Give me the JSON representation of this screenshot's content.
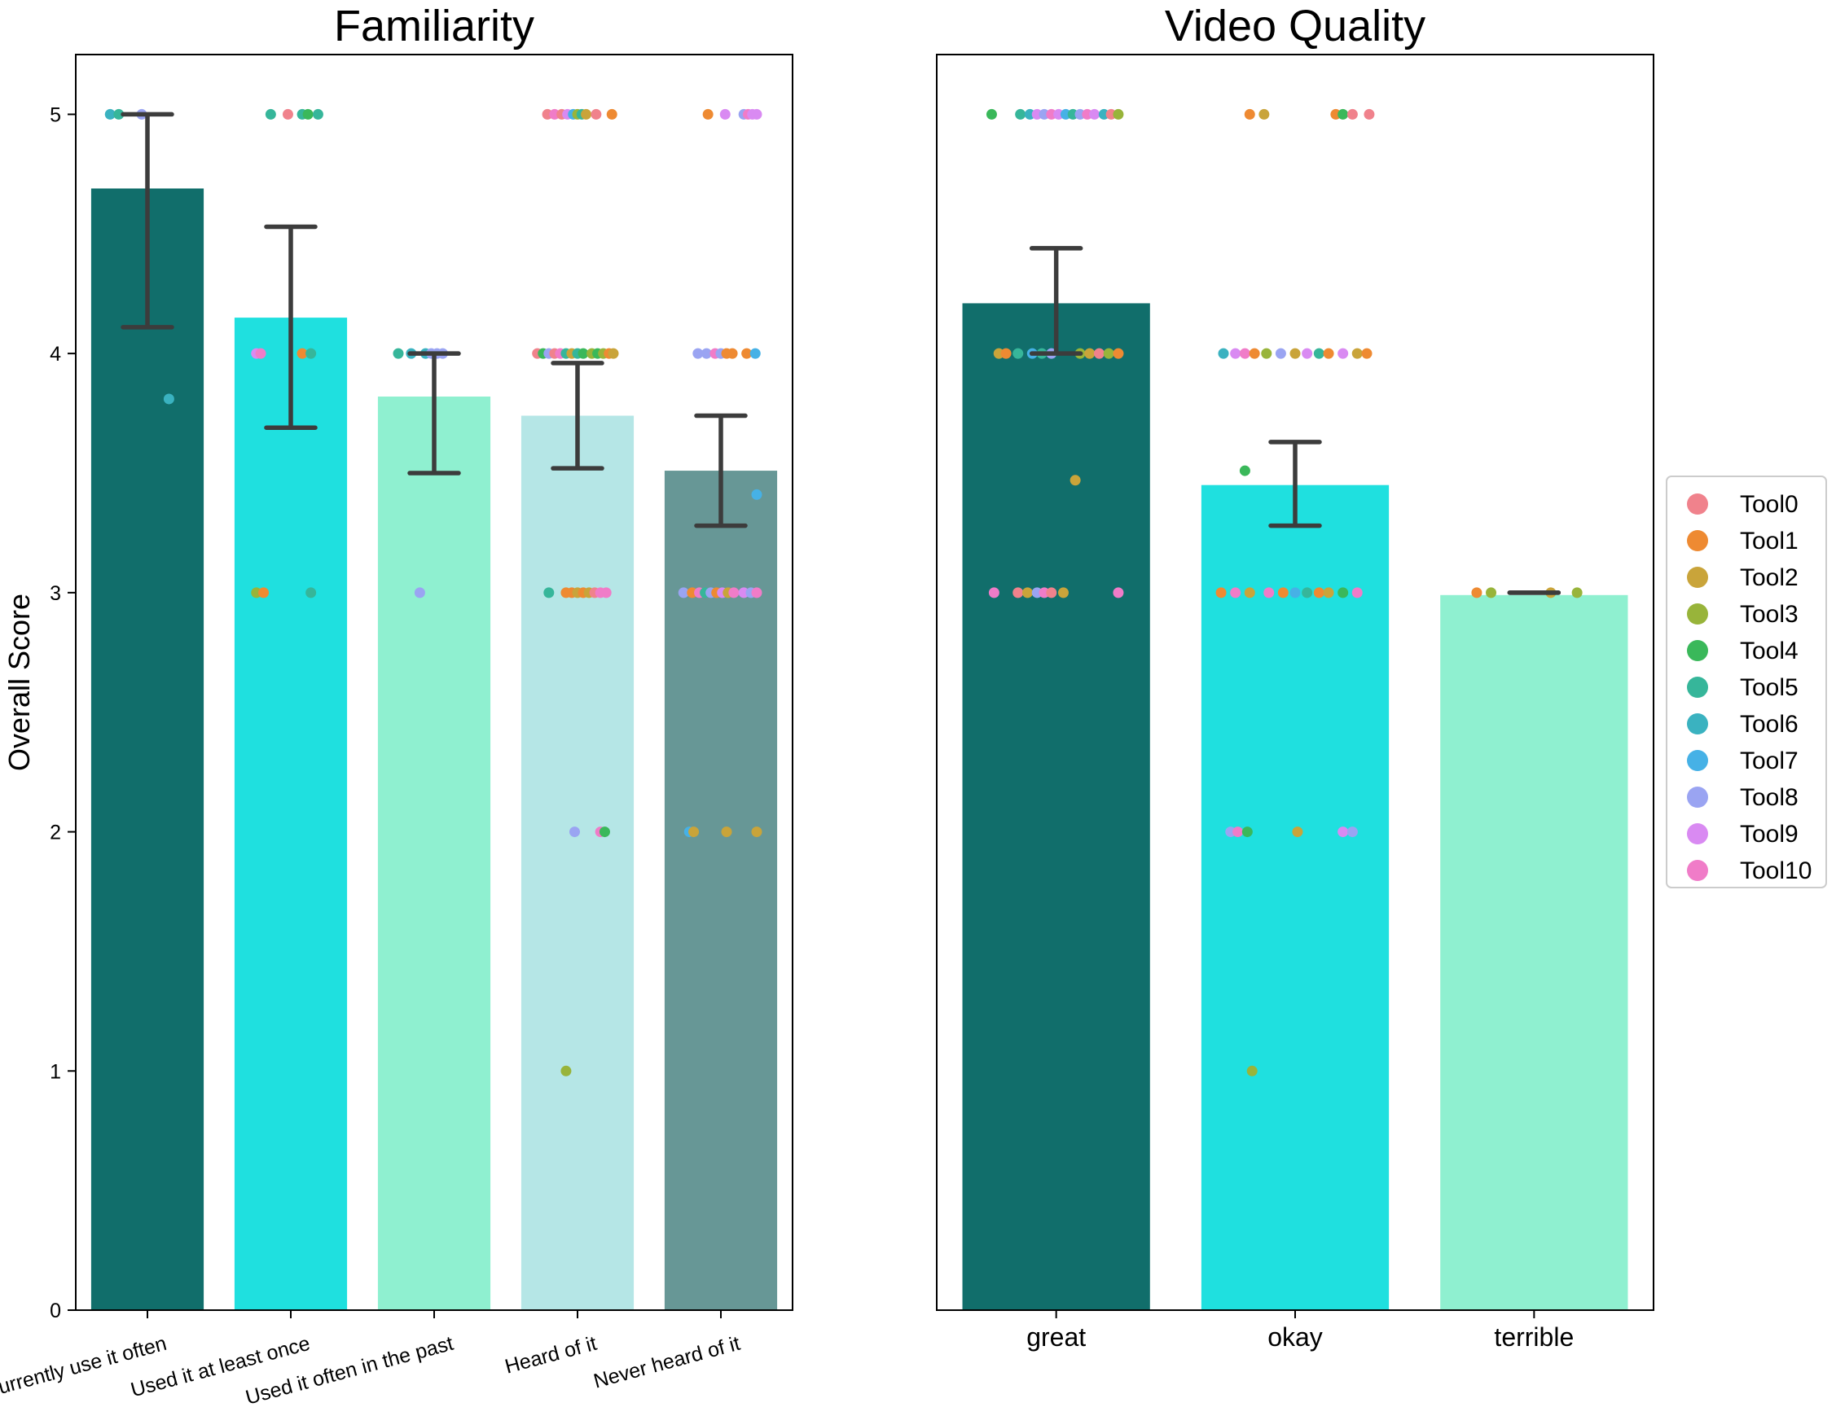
{
  "chart_data": [
    {
      "type": "bar",
      "title": "Familiarity",
      "xlabel": "",
      "ylabel": "Overall Score",
      "ylim": [
        0,
        5.25
      ],
      "yticks": [
        "0",
        "1",
        "2",
        "3",
        "4",
        "5"
      ],
      "categories": [
        "Currently use it often",
        "Used it at least once",
        "Used it often in the past",
        "Heard of it",
        "Never heard of it"
      ],
      "values": [
        4.69,
        4.15,
        3.82,
        3.74,
        3.51
      ],
      "errors_low": [
        4.11,
        3.69,
        3.5,
        3.52,
        3.28
      ],
      "errors_high": [
        5.0,
        4.53,
        4.0,
        3.96,
        3.74
      ],
      "bar_colors": [
        "#116e6b",
        "#1fe0df",
        "#8ff0d0",
        "#b5e6e6",
        "#679796"
      ],
      "points": [
        {
          "cat": 0,
          "offset": -0.26,
          "y": 5,
          "tool": 6
        },
        {
          "cat": 0,
          "offset": -0.2,
          "y": 5,
          "tool": 5
        },
        {
          "cat": 0,
          "offset": -0.04,
          "y": 5,
          "tool": 8
        },
        {
          "cat": 0,
          "offset": 0.15,
          "y": 3.81,
          "tool": 6
        },
        {
          "cat": 1,
          "offset": -0.14,
          "y": 5,
          "tool": 5
        },
        {
          "cat": 1,
          "offset": -0.02,
          "y": 5,
          "tool": 0
        },
        {
          "cat": 1,
          "offset": 0.08,
          "y": 5,
          "tool": 5
        },
        {
          "cat": 1,
          "offset": 0.12,
          "y": 5,
          "tool": 4
        },
        {
          "cat": 1,
          "offset": 0.19,
          "y": 5,
          "tool": 5
        },
        {
          "cat": 1,
          "offset": -0.24,
          "y": 4,
          "tool": 9
        },
        {
          "cat": 1,
          "offset": -0.21,
          "y": 4,
          "tool": 10
        },
        {
          "cat": 1,
          "offset": 0.08,
          "y": 4,
          "tool": 1
        },
        {
          "cat": 1,
          "offset": 0.14,
          "y": 4,
          "tool": 5
        },
        {
          "cat": 1,
          "offset": -0.24,
          "y": 3,
          "tool": 3
        },
        {
          "cat": 1,
          "offset": -0.19,
          "y": 3,
          "tool": 1
        },
        {
          "cat": 1,
          "offset": 0.14,
          "y": 3,
          "tool": 5
        },
        {
          "cat": 2,
          "offset": -0.25,
          "y": 4,
          "tool": 5
        },
        {
          "cat": 2,
          "offset": -0.16,
          "y": 4,
          "tool": 6
        },
        {
          "cat": 2,
          "offset": -0.06,
          "y": 4,
          "tool": 6
        },
        {
          "cat": 2,
          "offset": -0.02,
          "y": 4,
          "tool": 8
        },
        {
          "cat": 2,
          "offset": 0.02,
          "y": 4,
          "tool": 8
        },
        {
          "cat": 2,
          "offset": 0.06,
          "y": 4,
          "tool": 8
        },
        {
          "cat": 2,
          "offset": -0.1,
          "y": 3,
          "tool": 8
        },
        {
          "cat": 3,
          "offset": -0.21,
          "y": 5,
          "tool": 0
        },
        {
          "cat": 3,
          "offset": -0.16,
          "y": 5,
          "tool": 10
        },
        {
          "cat": 3,
          "offset": -0.11,
          "y": 5,
          "tool": 0
        },
        {
          "cat": 3,
          "offset": -0.07,
          "y": 5,
          "tool": 9
        },
        {
          "cat": 3,
          "offset": -0.03,
          "y": 5,
          "tool": 7
        },
        {
          "cat": 3,
          "offset": 0.0,
          "y": 5,
          "tool": 3
        },
        {
          "cat": 3,
          "offset": 0.03,
          "y": 5,
          "tool": 5
        },
        {
          "cat": 3,
          "offset": 0.06,
          "y": 5,
          "tool": 2
        },
        {
          "cat": 3,
          "offset": 0.13,
          "y": 5,
          "tool": 0
        },
        {
          "cat": 3,
          "offset": 0.24,
          "y": 5,
          "tool": 1
        },
        {
          "cat": 3,
          "offset": -0.28,
          "y": 4,
          "tool": 0
        },
        {
          "cat": 3,
          "offset": -0.24,
          "y": 4,
          "tool": 4
        },
        {
          "cat": 3,
          "offset": -0.2,
          "y": 4,
          "tool": 8
        },
        {
          "cat": 3,
          "offset": -0.16,
          "y": 4,
          "tool": 0
        },
        {
          "cat": 3,
          "offset": -0.12,
          "y": 4,
          "tool": 10
        },
        {
          "cat": 3,
          "offset": -0.08,
          "y": 4,
          "tool": 5
        },
        {
          "cat": 3,
          "offset": -0.04,
          "y": 4,
          "tool": 2
        },
        {
          "cat": 3,
          "offset": 0.0,
          "y": 4,
          "tool": 5
        },
        {
          "cat": 3,
          "offset": 0.04,
          "y": 4,
          "tool": 4
        },
        {
          "cat": 3,
          "offset": 0.1,
          "y": 4,
          "tool": 3
        },
        {
          "cat": 3,
          "offset": 0.14,
          "y": 4,
          "tool": 4
        },
        {
          "cat": 3,
          "offset": 0.18,
          "y": 4,
          "tool": 3
        },
        {
          "cat": 3,
          "offset": 0.22,
          "y": 4,
          "tool": 1
        },
        {
          "cat": 3,
          "offset": 0.25,
          "y": 4,
          "tool": 2
        },
        {
          "cat": 3,
          "offset": -0.2,
          "y": 3,
          "tool": 5
        },
        {
          "cat": 3,
          "offset": -0.08,
          "y": 3,
          "tool": 1
        },
        {
          "cat": 3,
          "offset": -0.04,
          "y": 3,
          "tool": 1
        },
        {
          "cat": 3,
          "offset": 0.0,
          "y": 3,
          "tool": 2
        },
        {
          "cat": 3,
          "offset": 0.04,
          "y": 3,
          "tool": 1
        },
        {
          "cat": 3,
          "offset": 0.08,
          "y": 3,
          "tool": 2
        },
        {
          "cat": 3,
          "offset": 0.12,
          "y": 3,
          "tool": 0
        },
        {
          "cat": 3,
          "offset": 0.16,
          "y": 3,
          "tool": 10
        },
        {
          "cat": 3,
          "offset": 0.2,
          "y": 3,
          "tool": 10
        },
        {
          "cat": 3,
          "offset": -0.02,
          "y": 2,
          "tool": 8
        },
        {
          "cat": 3,
          "offset": 0.16,
          "y": 2,
          "tool": 10
        },
        {
          "cat": 3,
          "offset": 0.19,
          "y": 2,
          "tool": 4
        },
        {
          "cat": 3,
          "offset": -0.08,
          "y": 1,
          "tool": 3
        },
        {
          "cat": 4,
          "offset": -0.09,
          "y": 5,
          "tool": 1
        },
        {
          "cat": 4,
          "offset": 0.03,
          "y": 5,
          "tool": 9
        },
        {
          "cat": 4,
          "offset": 0.16,
          "y": 5,
          "tool": 8
        },
        {
          "cat": 4,
          "offset": 0.19,
          "y": 5,
          "tool": 10
        },
        {
          "cat": 4,
          "offset": 0.22,
          "y": 5,
          "tool": 9
        },
        {
          "cat": 4,
          "offset": 0.25,
          "y": 5,
          "tool": 9
        },
        {
          "cat": 4,
          "offset": -0.16,
          "y": 4,
          "tool": 8
        },
        {
          "cat": 4,
          "offset": -0.1,
          "y": 4,
          "tool": 8
        },
        {
          "cat": 4,
          "offset": -0.04,
          "y": 4,
          "tool": 10
        },
        {
          "cat": 4,
          "offset": 0.0,
          "y": 4,
          "tool": 8
        },
        {
          "cat": 4,
          "offset": 0.04,
          "y": 4,
          "tool": 1
        },
        {
          "cat": 4,
          "offset": 0.08,
          "y": 4,
          "tool": 1
        },
        {
          "cat": 4,
          "offset": 0.18,
          "y": 4,
          "tool": 1
        },
        {
          "cat": 4,
          "offset": 0.24,
          "y": 4,
          "tool": 7
        },
        {
          "cat": 4,
          "offset": 0.25,
          "y": 3.41,
          "tool": 7
        },
        {
          "cat": 4,
          "offset": -0.26,
          "y": 3,
          "tool": 8
        },
        {
          "cat": 4,
          "offset": -0.2,
          "y": 3,
          "tool": 1
        },
        {
          "cat": 4,
          "offset": -0.15,
          "y": 3,
          "tool": 10
        },
        {
          "cat": 4,
          "offset": -0.11,
          "y": 3,
          "tool": 5
        },
        {
          "cat": 4,
          "offset": -0.07,
          "y": 3,
          "tool": 8
        },
        {
          "cat": 4,
          "offset": -0.03,
          "y": 3,
          "tool": 1
        },
        {
          "cat": 4,
          "offset": 0.01,
          "y": 3,
          "tool": 9
        },
        {
          "cat": 4,
          "offset": 0.05,
          "y": 3,
          "tool": 2
        },
        {
          "cat": 4,
          "offset": 0.09,
          "y": 3,
          "tool": 10
        },
        {
          "cat": 4,
          "offset": 0.16,
          "y": 3,
          "tool": 9
        },
        {
          "cat": 4,
          "offset": 0.21,
          "y": 3,
          "tool": 8
        },
        {
          "cat": 4,
          "offset": 0.25,
          "y": 3,
          "tool": 10
        },
        {
          "cat": 4,
          "offset": -0.22,
          "y": 2,
          "tool": 7
        },
        {
          "cat": 4,
          "offset": -0.19,
          "y": 2,
          "tool": 2
        },
        {
          "cat": 4,
          "offset": 0.04,
          "y": 2,
          "tool": 2
        },
        {
          "cat": 4,
          "offset": 0.25,
          "y": 2,
          "tool": 2
        }
      ]
    },
    {
      "type": "bar",
      "title": "Video Quality",
      "xlabel": "",
      "ylabel": "",
      "ylim": [
        0,
        5.25
      ],
      "categories": [
        "great",
        "okay",
        "terrible"
      ],
      "values": [
        4.21,
        3.45,
        2.99
      ],
      "errors_low": [
        4.0,
        3.28,
        3.0
      ],
      "errors_high": [
        4.44,
        3.63,
        3.0
      ],
      "bar_colors": [
        "#116e6b",
        "#1fe0df",
        "#8ff0d0"
      ],
      "points": [
        {
          "cat": 0,
          "offset": -0.27,
          "y": 5,
          "tool": 4
        },
        {
          "cat": 0,
          "offset": -0.15,
          "y": 5,
          "tool": 5
        },
        {
          "cat": 0,
          "offset": -0.11,
          "y": 5,
          "tool": 6
        },
        {
          "cat": 0,
          "offset": -0.08,
          "y": 5,
          "tool": 9
        },
        {
          "cat": 0,
          "offset": -0.05,
          "y": 5,
          "tool": 8
        },
        {
          "cat": 0,
          "offset": -0.02,
          "y": 5,
          "tool": 10
        },
        {
          "cat": 0,
          "offset": 0.01,
          "y": 5,
          "tool": 9
        },
        {
          "cat": 0,
          "offset": 0.04,
          "y": 5,
          "tool": 7
        },
        {
          "cat": 0,
          "offset": 0.07,
          "y": 5,
          "tool": 5
        },
        {
          "cat": 0,
          "offset": 0.1,
          "y": 5,
          "tool": 8
        },
        {
          "cat": 0,
          "offset": 0.13,
          "y": 5,
          "tool": 10
        },
        {
          "cat": 0,
          "offset": 0.16,
          "y": 5,
          "tool": 9
        },
        {
          "cat": 0,
          "offset": 0.2,
          "y": 5,
          "tool": 6
        },
        {
          "cat": 0,
          "offset": 0.23,
          "y": 5,
          "tool": 0
        },
        {
          "cat": 0,
          "offset": 0.26,
          "y": 5,
          "tool": 3
        },
        {
          "cat": 0,
          "offset": -0.24,
          "y": 4,
          "tool": 2
        },
        {
          "cat": 0,
          "offset": -0.21,
          "y": 4,
          "tool": 1
        },
        {
          "cat": 0,
          "offset": -0.16,
          "y": 4,
          "tool": 5
        },
        {
          "cat": 0,
          "offset": -0.1,
          "y": 4,
          "tool": 7
        },
        {
          "cat": 0,
          "offset": -0.06,
          "y": 4,
          "tool": 5
        },
        {
          "cat": 0,
          "offset": -0.02,
          "y": 4,
          "tool": 8
        },
        {
          "cat": 0,
          "offset": 0.1,
          "y": 4,
          "tool": 3
        },
        {
          "cat": 0,
          "offset": 0.14,
          "y": 4,
          "tool": 2
        },
        {
          "cat": 0,
          "offset": 0.18,
          "y": 4,
          "tool": 0
        },
        {
          "cat": 0,
          "offset": 0.22,
          "y": 4,
          "tool": 3
        },
        {
          "cat": 0,
          "offset": 0.26,
          "y": 4,
          "tool": 1
        },
        {
          "cat": 0,
          "offset": 0.08,
          "y": 3.47,
          "tool": 2
        },
        {
          "cat": 0,
          "offset": -0.26,
          "y": 3,
          "tool": 10
        },
        {
          "cat": 0,
          "offset": -0.16,
          "y": 3,
          "tool": 0
        },
        {
          "cat": 0,
          "offset": -0.12,
          "y": 3,
          "tool": 2
        },
        {
          "cat": 0,
          "offset": -0.08,
          "y": 3,
          "tool": 8
        },
        {
          "cat": 0,
          "offset": -0.05,
          "y": 3,
          "tool": 10
        },
        {
          "cat": 0,
          "offset": -0.02,
          "y": 3,
          "tool": 0
        },
        {
          "cat": 0,
          "offset": 0.03,
          "y": 3,
          "tool": 2
        },
        {
          "cat": 0,
          "offset": 0.26,
          "y": 3,
          "tool": 10
        },
        {
          "cat": 1,
          "offset": -0.19,
          "y": 5,
          "tool": 1
        },
        {
          "cat": 1,
          "offset": -0.13,
          "y": 5,
          "tool": 2
        },
        {
          "cat": 1,
          "offset": 0.17,
          "y": 5,
          "tool": 1
        },
        {
          "cat": 1,
          "offset": 0.2,
          "y": 5,
          "tool": 4
        },
        {
          "cat": 1,
          "offset": 0.24,
          "y": 5,
          "tool": 0
        },
        {
          "cat": 1,
          "offset": 0.31,
          "y": 5,
          "tool": 0
        },
        {
          "cat": 1,
          "offset": -0.3,
          "y": 4,
          "tool": 6
        },
        {
          "cat": 1,
          "offset": -0.25,
          "y": 4,
          "tool": 9
        },
        {
          "cat": 1,
          "offset": -0.21,
          "y": 4,
          "tool": 10
        },
        {
          "cat": 1,
          "offset": -0.17,
          "y": 4,
          "tool": 1
        },
        {
          "cat": 1,
          "offset": -0.12,
          "y": 4,
          "tool": 3
        },
        {
          "cat": 1,
          "offset": -0.06,
          "y": 4,
          "tool": 8
        },
        {
          "cat": 1,
          "offset": 0.0,
          "y": 4,
          "tool": 2
        },
        {
          "cat": 1,
          "offset": 0.05,
          "y": 4,
          "tool": 9
        },
        {
          "cat": 1,
          "offset": 0.1,
          "y": 4,
          "tool": 5
        },
        {
          "cat": 1,
          "offset": 0.14,
          "y": 4,
          "tool": 1
        },
        {
          "cat": 1,
          "offset": 0.2,
          "y": 4,
          "tool": 9
        },
        {
          "cat": 1,
          "offset": 0.26,
          "y": 4,
          "tool": 2
        },
        {
          "cat": 1,
          "offset": 0.3,
          "y": 4,
          "tool": 1
        },
        {
          "cat": 1,
          "offset": -0.21,
          "y": 3.51,
          "tool": 4
        },
        {
          "cat": 1,
          "offset": -0.31,
          "y": 3,
          "tool": 1
        },
        {
          "cat": 1,
          "offset": -0.25,
          "y": 3,
          "tool": 10
        },
        {
          "cat": 1,
          "offset": -0.19,
          "y": 3,
          "tool": 2
        },
        {
          "cat": 1,
          "offset": -0.11,
          "y": 3,
          "tool": 10
        },
        {
          "cat": 1,
          "offset": -0.05,
          "y": 3,
          "tool": 1
        },
        {
          "cat": 1,
          "offset": 0.0,
          "y": 3,
          "tool": 7
        },
        {
          "cat": 1,
          "offset": 0.05,
          "y": 3,
          "tool": 5
        },
        {
          "cat": 1,
          "offset": 0.1,
          "y": 3,
          "tool": 1
        },
        {
          "cat": 1,
          "offset": 0.14,
          "y": 3,
          "tool": 2
        },
        {
          "cat": 1,
          "offset": 0.2,
          "y": 3,
          "tool": 4
        },
        {
          "cat": 1,
          "offset": 0.26,
          "y": 3,
          "tool": 10
        },
        {
          "cat": 1,
          "offset": -0.27,
          "y": 2,
          "tool": 8
        },
        {
          "cat": 1,
          "offset": -0.24,
          "y": 2,
          "tool": 10
        },
        {
          "cat": 1,
          "offset": -0.2,
          "y": 2,
          "tool": 4
        },
        {
          "cat": 1,
          "offset": 0.01,
          "y": 2,
          "tool": 2
        },
        {
          "cat": 1,
          "offset": 0.2,
          "y": 2,
          "tool": 9
        },
        {
          "cat": 1,
          "offset": 0.24,
          "y": 2,
          "tool": 8
        },
        {
          "cat": 1,
          "offset": -0.18,
          "y": 1,
          "tool": 3
        },
        {
          "cat": 2,
          "offset": -0.24,
          "y": 3,
          "tool": 1
        },
        {
          "cat": 2,
          "offset": -0.18,
          "y": 3,
          "tool": 3
        },
        {
          "cat": 2,
          "offset": 0.07,
          "y": 3,
          "tool": 2
        },
        {
          "cat": 2,
          "offset": 0.18,
          "y": 3,
          "tool": 3
        }
      ]
    }
  ],
  "legend": {
    "placement": "center-right",
    "entries": [
      "Tool0",
      "Tool1",
      "Tool2",
      "Tool3",
      "Tool4",
      "Tool5",
      "Tool6",
      "Tool7",
      "Tool8",
      "Tool9",
      "Tool10"
    ],
    "colors": [
      "#f0828c",
      "#ee8a32",
      "#c9a43a",
      "#98b43a",
      "#3ab85a",
      "#36b69a",
      "#3ab2c0",
      "#46b1e6",
      "#9aa4f2",
      "#d98af2",
      "#f07cc8"
    ]
  },
  "colors": {
    "error_bar": "#3c3c3c",
    "axis": "#000000"
  }
}
